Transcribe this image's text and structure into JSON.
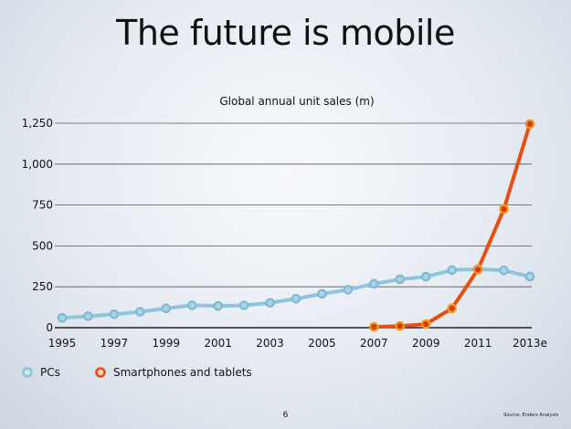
{
  "slide": {
    "title": "The future is mobile",
    "page_number": "6",
    "source": "Source: Enders Analysis"
  },
  "chart_data": {
    "type": "line",
    "title": "Global annual unit sales (m)",
    "xlabel": "",
    "ylabel": "",
    "x": [
      "1995",
      "1996",
      "1997",
      "1998",
      "1999",
      "2000",
      "2001",
      "2002",
      "2003",
      "2004",
      "2005",
      "2006",
      "2007",
      "2008",
      "2009",
      "2010",
      "2011",
      "2012",
      "2013e"
    ],
    "x_tick_labels": [
      "1995",
      "1997",
      "1999",
      "2001",
      "2003",
      "2005",
      "2007",
      "2009",
      "2011",
      "2013e"
    ],
    "y_tick_labels": [
      "0",
      "250",
      "500",
      "750",
      "1,000",
      "1,250"
    ],
    "y_ticks": [
      0,
      250,
      500,
      750,
      1000,
      1250
    ],
    "ylim": [
      0,
      1250
    ],
    "grid": true,
    "legend_position": "bottom-left",
    "series": [
      {
        "name": "PCs",
        "color": "#8ec5dc",
        "values": [
          60,
          70,
          82,
          97,
          118,
          137,
          133,
          136,
          152,
          177,
          207,
          232,
          268,
          296,
          312,
          352,
          358,
          350,
          312
        ]
      },
      {
        "name": "Smartphones and tablets",
        "color": "#e84e0f",
        "values": [
          null,
          null,
          null,
          null,
          null,
          null,
          null,
          null,
          null,
          null,
          null,
          null,
          5,
          10,
          22,
          118,
          355,
          725,
          1245
        ]
      }
    ]
  }
}
